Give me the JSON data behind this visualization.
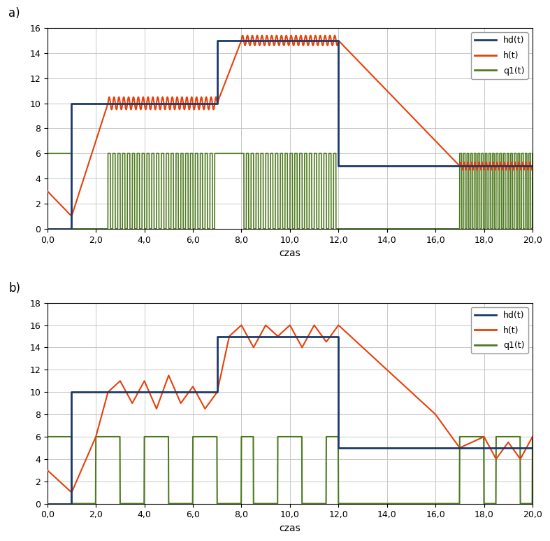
{
  "title_a": "a)",
  "title_b": "b)",
  "xlabel": "czas",
  "legend_labels": [
    "hd(t)",
    "h(t)",
    "q1(t)"
  ],
  "colors": {
    "hd": "#1a3a6b",
    "h": "#e8400a",
    "q1": "#4e7a1e"
  },
  "subplot_a": {
    "ylim": [
      0,
      16
    ],
    "yticks": [
      0,
      2,
      4,
      6,
      8,
      10,
      12,
      14,
      16
    ],
    "xlim": [
      0,
      20
    ],
    "xticks": [
      0,
      2,
      4,
      6,
      8,
      10,
      12,
      14,
      16,
      18,
      20
    ],
    "xticklabels": [
      "0,0",
      "2,0",
      "4,0",
      "6,0",
      "8,0",
      "10,0",
      "12,0",
      "14,0",
      "16,0",
      "18,0",
      "20,0"
    ]
  },
  "subplot_b": {
    "ylim": [
      0,
      18
    ],
    "yticks": [
      0,
      2,
      4,
      6,
      8,
      10,
      12,
      14,
      16,
      18
    ],
    "xlim": [
      0,
      20
    ],
    "xticks": [
      0,
      2,
      4,
      6,
      8,
      10,
      12,
      14,
      16,
      18,
      20
    ],
    "xticklabels": [
      "0,0",
      "2,0",
      "4,0",
      "6,0",
      "8,0",
      "10,0",
      "12,0",
      "14,0",
      "16,0",
      "18,0",
      "20,0"
    ]
  }
}
